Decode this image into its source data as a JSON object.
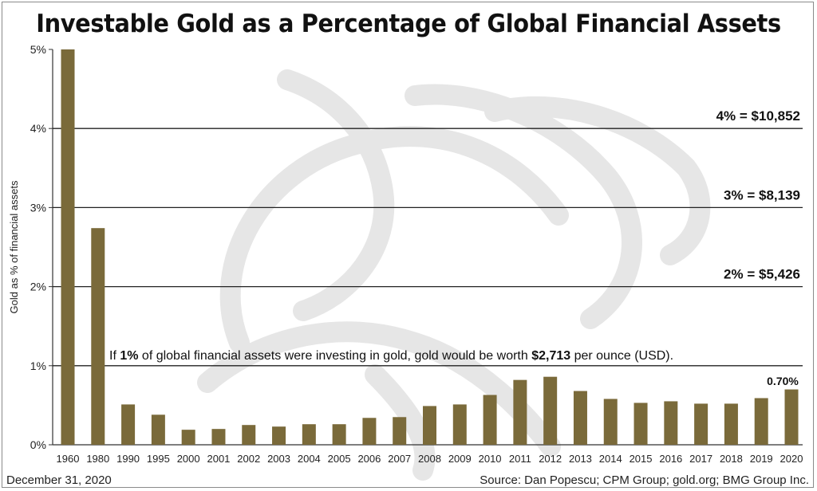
{
  "chart_data": {
    "type": "bar",
    "title": "Investable Gold as a Percentage of Global Financial Assets",
    "ylabel": "Gold as % of financial assets",
    "xlabel": "",
    "ylim": [
      0,
      5
    ],
    "y_ticks": [
      "0%",
      "1%",
      "2%",
      "3%",
      "4%",
      "5%"
    ],
    "categories": [
      "1960",
      "1980",
      "1990",
      "1995",
      "2000",
      "2001",
      "2002",
      "2003",
      "2004",
      "2005",
      "2006",
      "2007",
      "2008",
      "2009",
      "2010",
      "2011",
      "2012",
      "2013",
      "2014",
      "2015",
      "2016",
      "2017",
      "2018",
      "2019",
      "2020"
    ],
    "values": [
      5.0,
      2.74,
      0.51,
      0.38,
      0.19,
      0.2,
      0.25,
      0.23,
      0.26,
      0.26,
      0.34,
      0.35,
      0.49,
      0.51,
      0.63,
      0.82,
      0.86,
      0.68,
      0.58,
      0.53,
      0.55,
      0.52,
      0.52,
      0.59,
      0.7
    ],
    "grid": "horizontal",
    "bar_color": "#7a6a3a",
    "reference_lines": [
      {
        "value": 4,
        "label": "4% = $10,852"
      },
      {
        "value": 3,
        "label": "3% = $8,139"
      },
      {
        "value": 2,
        "label": "2% = $5,426"
      }
    ],
    "annotations": {
      "note_prefix": "If ",
      "note_bold1": "1%",
      "note_middle": " of global financial assets were investing in gold, gold would be worth ",
      "note_bold2": "$2,713",
      "note_suffix": " per ounce (USD).",
      "last_value_label": "0.70%"
    }
  },
  "footer": {
    "date": "December 31, 2020",
    "source": "Source: Dan Popescu; CPM Group; gold.org; BMG Group Inc."
  }
}
